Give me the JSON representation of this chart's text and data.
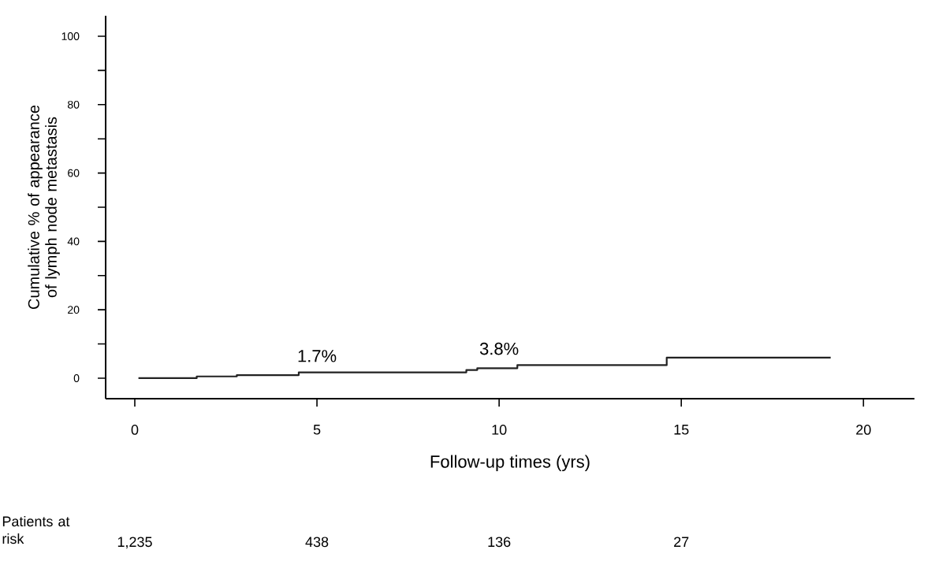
{
  "chart_data": {
    "type": "step",
    "xlabel": "Follow-up times (yrs)",
    "ylabel": "Cumulative % of appearance of lymph node metastasis",
    "x": [
      0.1,
      1.7,
      2.8,
      4.5,
      9.1,
      9.4,
      10.5,
      14.6,
      19.1
    ],
    "values": [
      0,
      0.5,
      0.9,
      1.7,
      2.4,
      2.9,
      3.8,
      6.0,
      6.0
    ],
    "color": "#222222",
    "xlim": [
      -0.8,
      21.4
    ],
    "xticks": [
      0,
      5,
      10,
      15,
      20
    ],
    "ylim": [
      -6,
      106
    ],
    "yticks": [
      0,
      {
        "value": 10,
        "label": null
      },
      20,
      {
        "value": 30,
        "label": null
      },
      40,
      {
        "value": 50,
        "label": null
      },
      60,
      {
        "value": 70,
        "label": null
      },
      80,
      {
        "value": 90,
        "label": null
      },
      100
    ],
    "annotations": [
      {
        "text": "1.7%",
        "x": 5,
        "y": 1.7
      },
      {
        "text": "3.8%",
        "x": 10,
        "y": 3.8
      },
      "Patients at risk",
      "1,235",
      "438",
      "136",
      "27"
    ]
  }
}
